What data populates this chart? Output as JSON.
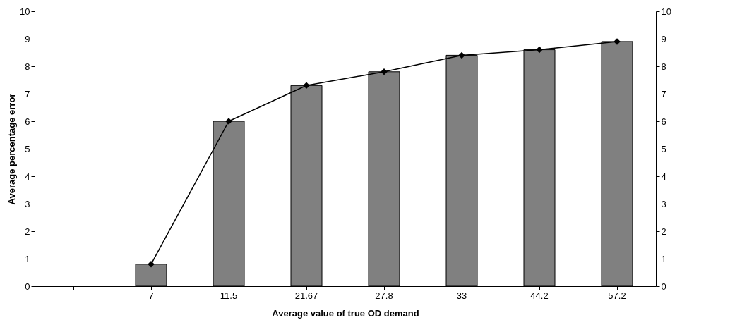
{
  "chart_data": {
    "type": "bar",
    "xlabel": "Average value of true OD demand",
    "ylabel": "Average percentage error",
    "categories": [
      null,
      "7",
      "11.5",
      "21.67",
      "27.8",
      "33",
      "44.2",
      "57.2"
    ],
    "series": [
      {
        "color": "#808080",
        "values": [
          null,
          0.8,
          6,
          7.3,
          7.8,
          8.4,
          8.6,
          8.9
        ]
      },
      {
        "type": "line",
        "axis": "y2",
        "color": "#000000",
        "marker": "diamond",
        "values": [
          null,
          0.8,
          6,
          7.3,
          7.8,
          8.4,
          8.6,
          8.9
        ]
      }
    ],
    "ylim": [
      0,
      10
    ],
    "yticks": [
      0,
      1,
      2,
      3,
      4,
      5,
      6,
      7,
      8,
      9,
      10
    ],
    "y2lim": [
      0,
      10
    ],
    "y2ticks": [
      0,
      1,
      2,
      3,
      4,
      5,
      6,
      7,
      8,
      9,
      10
    ],
    "grid": false
  }
}
